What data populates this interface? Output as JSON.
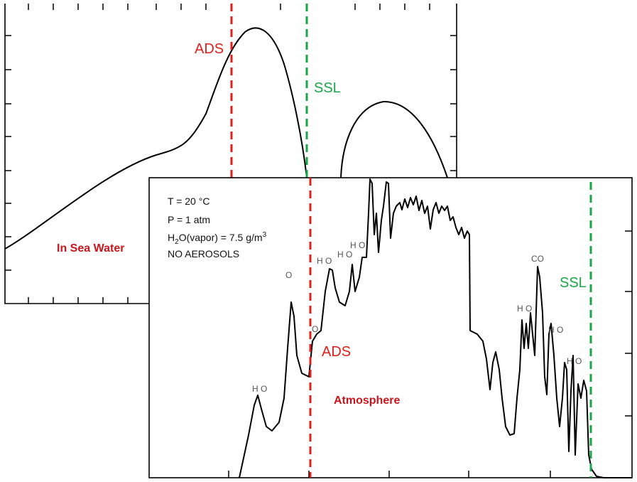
{
  "sea_panel": {
    "ads_label": "ADS",
    "ssl_label": "SSL",
    "medium_label": "In Sea Water"
  },
  "air_panel": {
    "conditions": {
      "temperature": "T = 20 °C",
      "pressure": "P = 1 atm",
      "vapor": {
        "h": "H",
        "sub": "2",
        "rest": "O(vapor) = 7.5 g/m",
        "sup": "3"
      },
      "aerosols": "NO AEROSOLS"
    },
    "band_labels": [
      "H O",
      "O",
      "H O",
      "H O",
      "H O",
      "O",
      "CO",
      "H O",
      "H O",
      "H O"
    ],
    "ads_label": "ADS",
    "ssl_label": "SSL",
    "medium_label": "Atmosphere"
  }
}
